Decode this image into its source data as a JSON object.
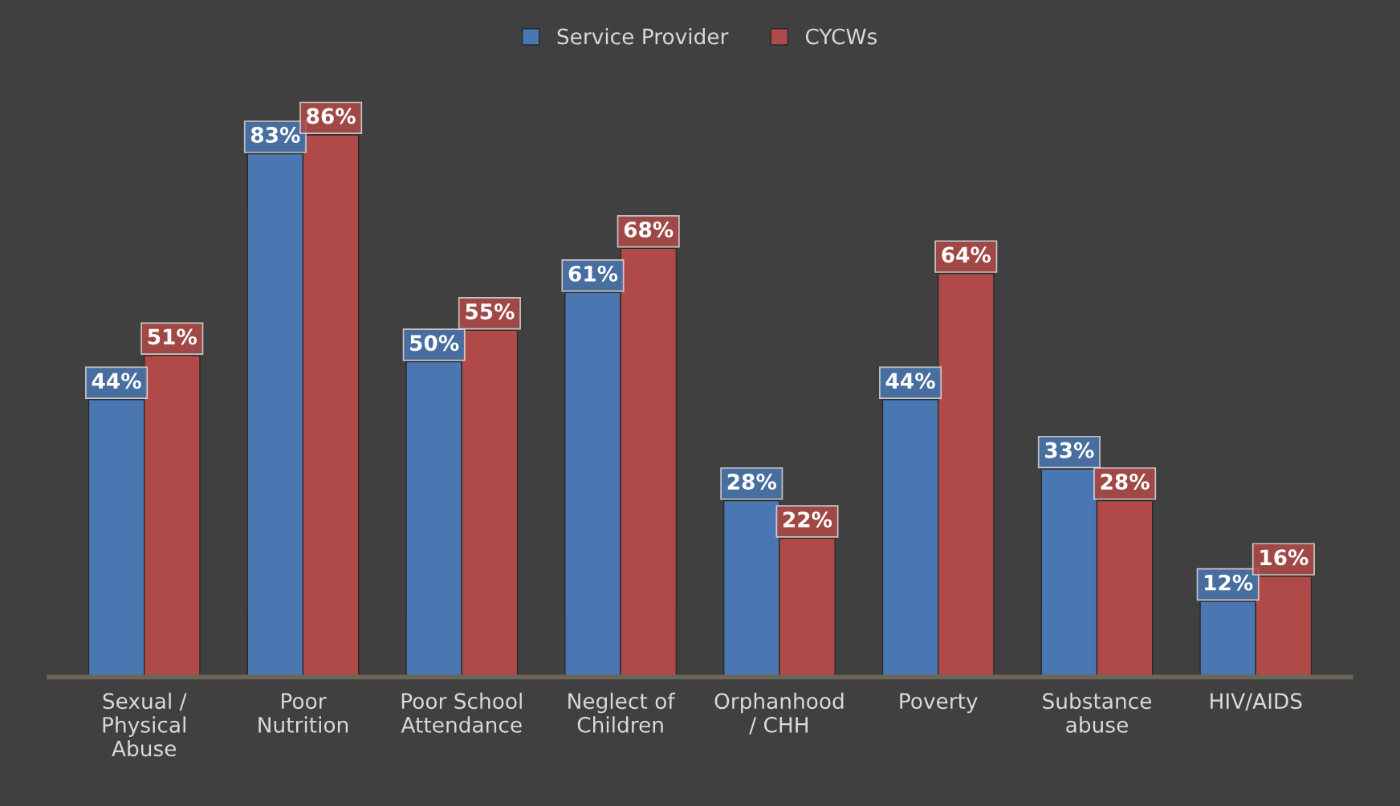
{
  "chart_data": {
    "type": "bar",
    "categories": [
      "Sexual /\nPhysical\nAbuse",
      "Poor\nNutrition",
      "Poor School\nAttendance",
      "Neglect of\nChildren",
      "Orphanhood\n/ CHH",
      "Poverty",
      "Substance\nabuse",
      "HIV/AIDS"
    ],
    "series": [
      {
        "name": "Service Provider",
        "color": "#4a77b1",
        "values": [
          44,
          83,
          50,
          61,
          28,
          44,
          33,
          12
        ],
        "value_labels": [
          "44%",
          "83%",
          "50%",
          "61%",
          "28%",
          "44%",
          "33%",
          "12%"
        ]
      },
      {
        "name": "CYCWs",
        "color": "#b04a48",
        "values": [
          51,
          86,
          55,
          68,
          22,
          64,
          28,
          16
        ],
        "value_labels": [
          "51%",
          "86%",
          "55%",
          "68%",
          "22%",
          "64%",
          "28%",
          "16%"
        ]
      }
    ],
    "legend": "top",
    "grid": false
  }
}
